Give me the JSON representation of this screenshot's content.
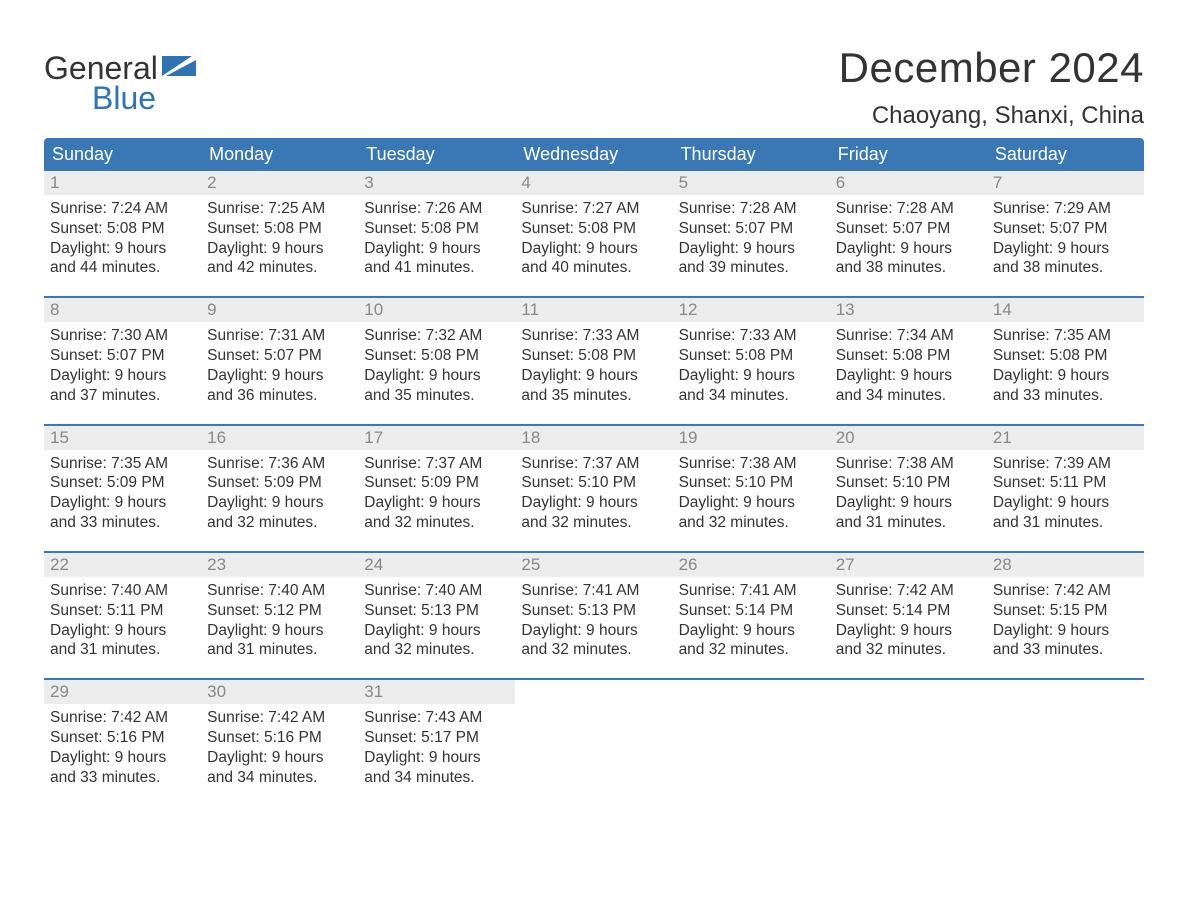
{
  "brand": {
    "word1": "General",
    "word2": "Blue"
  },
  "title": "December 2024",
  "location": "Chaoyang, Shanxi, China",
  "colors": {
    "header_bg": "#3a78b5",
    "header_text": "#ffffff",
    "week_border": "#3a78b5",
    "date_bar_bg": "#ececec",
    "date_text": "#888888",
    "body_text": "#333333",
    "brand_accent": "#2f73b4",
    "background": "#ffffff"
  },
  "day_names": [
    "Sunday",
    "Monday",
    "Tuesday",
    "Wednesday",
    "Thursday",
    "Friday",
    "Saturday"
  ],
  "weeks": [
    [
      {
        "date": "1",
        "sunrise": "Sunrise: 7:24 AM",
        "sunset": "Sunset: 5:08 PM",
        "day1": "Daylight: 9 hours",
        "day2": "and 44 minutes."
      },
      {
        "date": "2",
        "sunrise": "Sunrise: 7:25 AM",
        "sunset": "Sunset: 5:08 PM",
        "day1": "Daylight: 9 hours",
        "day2": "and 42 minutes."
      },
      {
        "date": "3",
        "sunrise": "Sunrise: 7:26 AM",
        "sunset": "Sunset: 5:08 PM",
        "day1": "Daylight: 9 hours",
        "day2": "and 41 minutes."
      },
      {
        "date": "4",
        "sunrise": "Sunrise: 7:27 AM",
        "sunset": "Sunset: 5:08 PM",
        "day1": "Daylight: 9 hours",
        "day2": "and 40 minutes."
      },
      {
        "date": "5",
        "sunrise": "Sunrise: 7:28 AM",
        "sunset": "Sunset: 5:07 PM",
        "day1": "Daylight: 9 hours",
        "day2": "and 39 minutes."
      },
      {
        "date": "6",
        "sunrise": "Sunrise: 7:28 AM",
        "sunset": "Sunset: 5:07 PM",
        "day1": "Daylight: 9 hours",
        "day2": "and 38 minutes."
      },
      {
        "date": "7",
        "sunrise": "Sunrise: 7:29 AM",
        "sunset": "Sunset: 5:07 PM",
        "day1": "Daylight: 9 hours",
        "day2": "and 38 minutes."
      }
    ],
    [
      {
        "date": "8",
        "sunrise": "Sunrise: 7:30 AM",
        "sunset": "Sunset: 5:07 PM",
        "day1": "Daylight: 9 hours",
        "day2": "and 37 minutes."
      },
      {
        "date": "9",
        "sunrise": "Sunrise: 7:31 AM",
        "sunset": "Sunset: 5:07 PM",
        "day1": "Daylight: 9 hours",
        "day2": "and 36 minutes."
      },
      {
        "date": "10",
        "sunrise": "Sunrise: 7:32 AM",
        "sunset": "Sunset: 5:08 PM",
        "day1": "Daylight: 9 hours",
        "day2": "and 35 minutes."
      },
      {
        "date": "11",
        "sunrise": "Sunrise: 7:33 AM",
        "sunset": "Sunset: 5:08 PM",
        "day1": "Daylight: 9 hours",
        "day2": "and 35 minutes."
      },
      {
        "date": "12",
        "sunrise": "Sunrise: 7:33 AM",
        "sunset": "Sunset: 5:08 PM",
        "day1": "Daylight: 9 hours",
        "day2": "and 34 minutes."
      },
      {
        "date": "13",
        "sunrise": "Sunrise: 7:34 AM",
        "sunset": "Sunset: 5:08 PM",
        "day1": "Daylight: 9 hours",
        "day2": "and 34 minutes."
      },
      {
        "date": "14",
        "sunrise": "Sunrise: 7:35 AM",
        "sunset": "Sunset: 5:08 PM",
        "day1": "Daylight: 9 hours",
        "day2": "and 33 minutes."
      }
    ],
    [
      {
        "date": "15",
        "sunrise": "Sunrise: 7:35 AM",
        "sunset": "Sunset: 5:09 PM",
        "day1": "Daylight: 9 hours",
        "day2": "and 33 minutes."
      },
      {
        "date": "16",
        "sunrise": "Sunrise: 7:36 AM",
        "sunset": "Sunset: 5:09 PM",
        "day1": "Daylight: 9 hours",
        "day2": "and 32 minutes."
      },
      {
        "date": "17",
        "sunrise": "Sunrise: 7:37 AM",
        "sunset": "Sunset: 5:09 PM",
        "day1": "Daylight: 9 hours",
        "day2": "and 32 minutes."
      },
      {
        "date": "18",
        "sunrise": "Sunrise: 7:37 AM",
        "sunset": "Sunset: 5:10 PM",
        "day1": "Daylight: 9 hours",
        "day2": "and 32 minutes."
      },
      {
        "date": "19",
        "sunrise": "Sunrise: 7:38 AM",
        "sunset": "Sunset: 5:10 PM",
        "day1": "Daylight: 9 hours",
        "day2": "and 32 minutes."
      },
      {
        "date": "20",
        "sunrise": "Sunrise: 7:38 AM",
        "sunset": "Sunset: 5:10 PM",
        "day1": "Daylight: 9 hours",
        "day2": "and 31 minutes."
      },
      {
        "date": "21",
        "sunrise": "Sunrise: 7:39 AM",
        "sunset": "Sunset: 5:11 PM",
        "day1": "Daylight: 9 hours",
        "day2": "and 31 minutes."
      }
    ],
    [
      {
        "date": "22",
        "sunrise": "Sunrise: 7:40 AM",
        "sunset": "Sunset: 5:11 PM",
        "day1": "Daylight: 9 hours",
        "day2": "and 31 minutes."
      },
      {
        "date": "23",
        "sunrise": "Sunrise: 7:40 AM",
        "sunset": "Sunset: 5:12 PM",
        "day1": "Daylight: 9 hours",
        "day2": "and 31 minutes."
      },
      {
        "date": "24",
        "sunrise": "Sunrise: 7:40 AM",
        "sunset": "Sunset: 5:13 PM",
        "day1": "Daylight: 9 hours",
        "day2": "and 32 minutes."
      },
      {
        "date": "25",
        "sunrise": "Sunrise: 7:41 AM",
        "sunset": "Sunset: 5:13 PM",
        "day1": "Daylight: 9 hours",
        "day2": "and 32 minutes."
      },
      {
        "date": "26",
        "sunrise": "Sunrise: 7:41 AM",
        "sunset": "Sunset: 5:14 PM",
        "day1": "Daylight: 9 hours",
        "day2": "and 32 minutes."
      },
      {
        "date": "27",
        "sunrise": "Sunrise: 7:42 AM",
        "sunset": "Sunset: 5:14 PM",
        "day1": "Daylight: 9 hours",
        "day2": "and 32 minutes."
      },
      {
        "date": "28",
        "sunrise": "Sunrise: 7:42 AM",
        "sunset": "Sunset: 5:15 PM",
        "day1": "Daylight: 9 hours",
        "day2": "and 33 minutes."
      }
    ],
    [
      {
        "date": "29",
        "sunrise": "Sunrise: 7:42 AM",
        "sunset": "Sunset: 5:16 PM",
        "day1": "Daylight: 9 hours",
        "day2": "and 33 minutes."
      },
      {
        "date": "30",
        "sunrise": "Sunrise: 7:42 AM",
        "sunset": "Sunset: 5:16 PM",
        "day1": "Daylight: 9 hours",
        "day2": "and 34 minutes."
      },
      {
        "date": "31",
        "sunrise": "Sunrise: 7:43 AM",
        "sunset": "Sunset: 5:17 PM",
        "day1": "Daylight: 9 hours",
        "day2": "and 34 minutes."
      },
      {
        "empty": true
      },
      {
        "empty": true
      },
      {
        "empty": true
      },
      {
        "empty": true
      }
    ]
  ]
}
